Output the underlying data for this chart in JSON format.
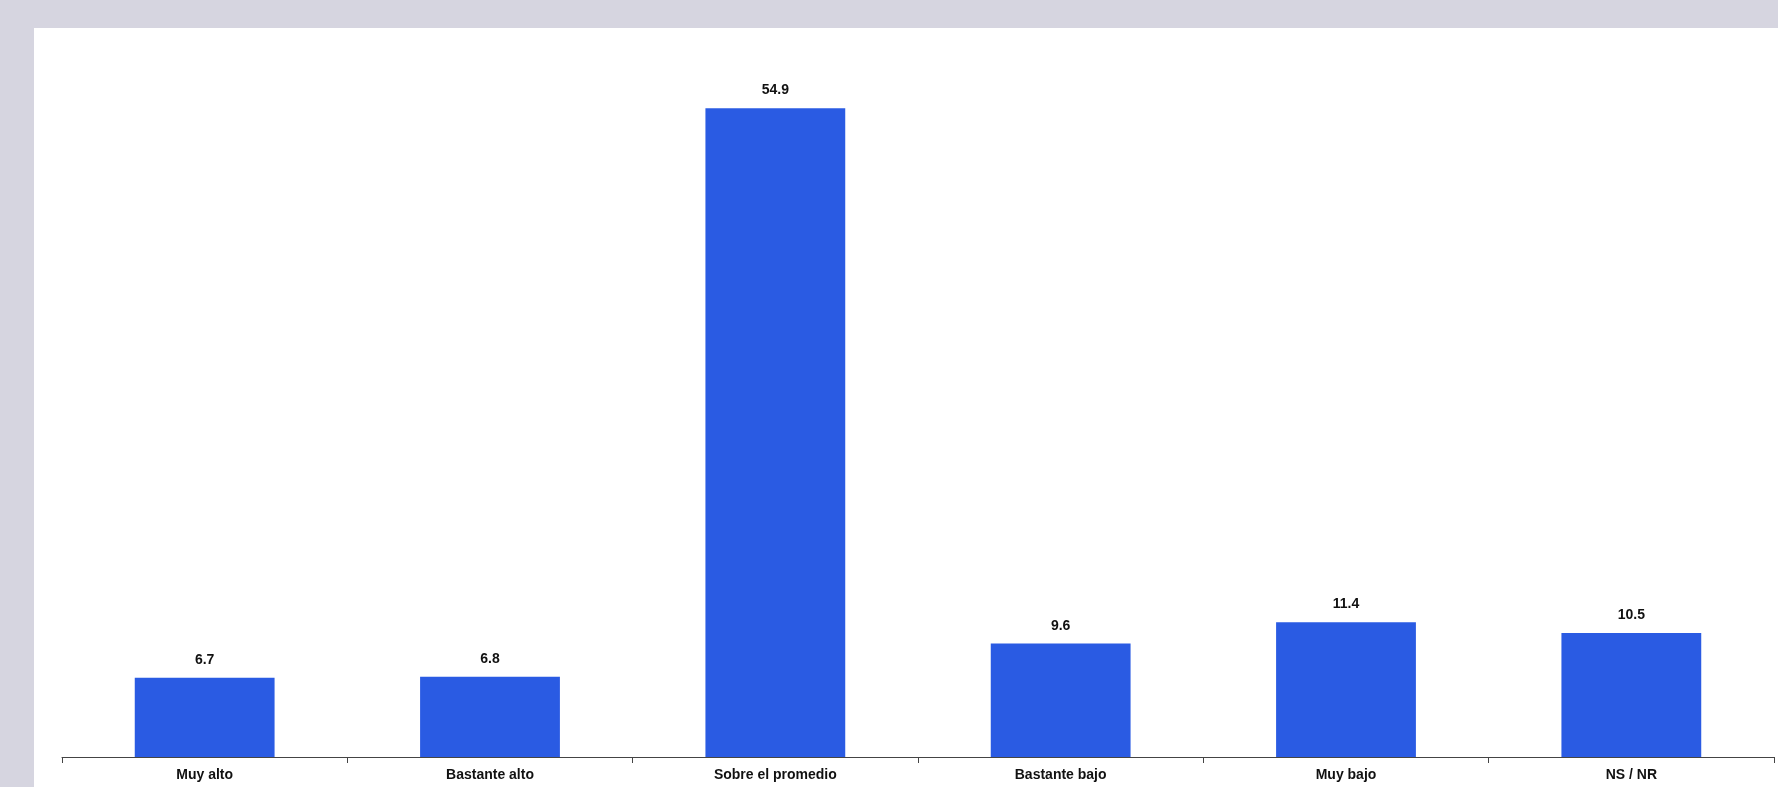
{
  "chart_data": {
    "type": "bar",
    "categories": [
      "Muy alto",
      "Bastante alto",
      "Sobre el promedio",
      "Bastante bajo",
      "Muy bajo",
      "NS / NR"
    ],
    "values": [
      6.7,
      6.8,
      54.9,
      9.6,
      11.4,
      10.5
    ],
    "color": "#2a5be3",
    "data_labels": true
  }
}
